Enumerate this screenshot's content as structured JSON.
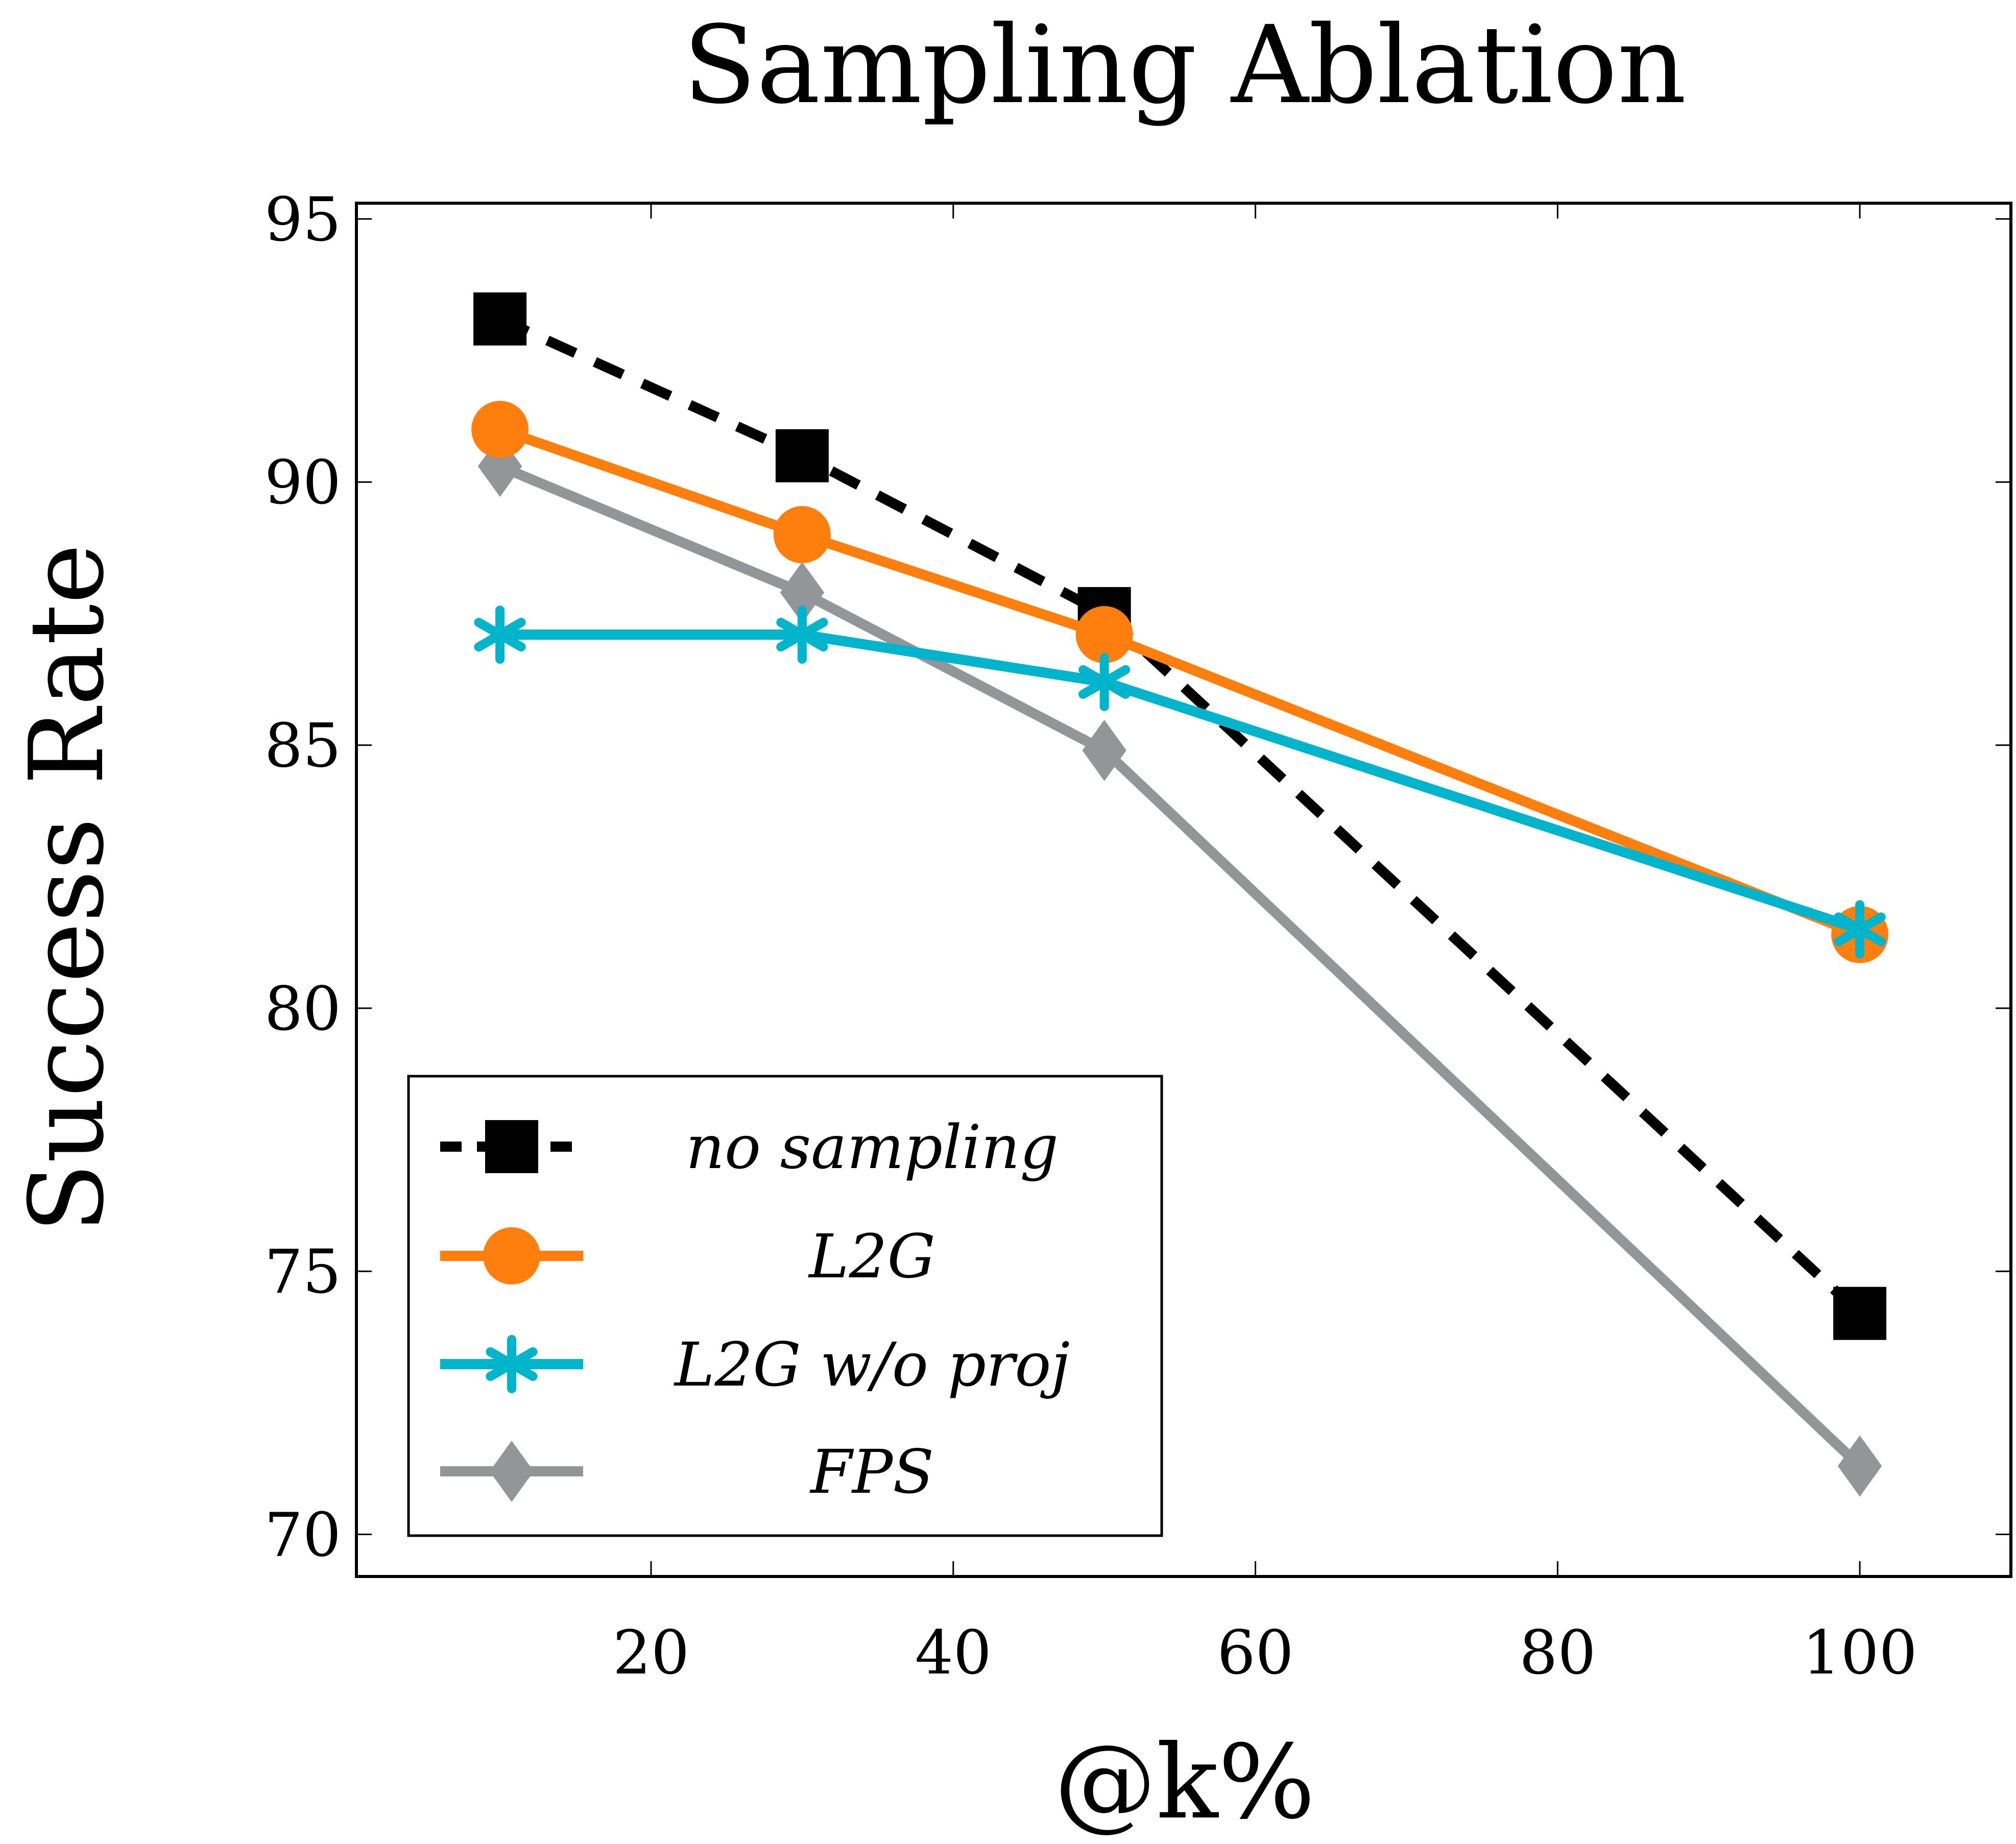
{
  "chart_data": {
    "type": "line",
    "title": "Sampling Ablation",
    "xlabel": "@k%",
    "ylabel": "Success Rate",
    "xlim": [
      0.5,
      110
    ],
    "ylim": [
      69.2,
      95.3
    ],
    "xticks": [
      20,
      40,
      60,
      80,
      100
    ],
    "xtick_labels": [
      "20",
      "40",
      "60",
      "80",
      "100"
    ],
    "yticks": [
      70,
      75,
      80,
      85,
      90,
      95
    ],
    "ytick_labels": [
      "70",
      "75",
      "80",
      "85",
      "90",
      "95"
    ],
    "grid": false,
    "legend_position": "bottom-left",
    "series": [
      {
        "name": "no sampling",
        "color": "#000000",
        "dashed": true,
        "marker": "square",
        "x": [
          10,
          30,
          50,
          100
        ],
        "values": [
          93.1,
          90.5,
          87.5,
          74.2
        ]
      },
      {
        "name": "L2G",
        "color": "#ff7f0e",
        "dashed": false,
        "marker": "circle",
        "x": [
          10,
          30,
          50,
          100
        ],
        "values": [
          91.0,
          89.0,
          87.1,
          81.4
        ]
      },
      {
        "name": "L2G w/o proj",
        "color": "#00b4cc",
        "dashed": false,
        "marker": "star",
        "x": [
          10,
          30,
          50,
          100
        ],
        "values": [
          87.1,
          87.1,
          86.2,
          81.5
        ]
      },
      {
        "name": "FPS",
        "color": "#939598",
        "dashed": false,
        "marker": "diamond",
        "x": [
          10,
          30,
          50,
          100
        ],
        "values": [
          90.3,
          87.9,
          84.9,
          71.3
        ]
      }
    ]
  }
}
